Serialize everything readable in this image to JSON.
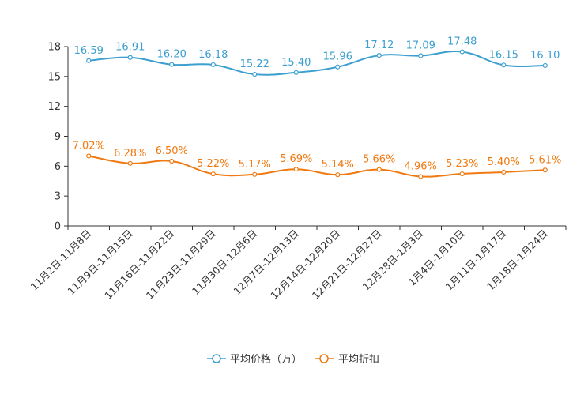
{
  "chart_data": {
    "type": "line",
    "title": "",
    "xlabel": "",
    "ylabel": "",
    "ylim": [
      0,
      18
    ],
    "yticks": [
      0,
      3,
      6,
      9,
      12,
      15,
      18
    ],
    "categories": [
      "11月2日-11月8日",
      "11月9日-11月15日",
      "11月16日-11月22日",
      "11月23日-11月29日",
      "11月30日-12月6日",
      "12月7日-12月13日",
      "12月14日-12月20日",
      "12月21日-12月27日",
      "12月28日-1月3日",
      "1月4日-1月10日",
      "1月11日-1月17日",
      "1月18日-1月24日"
    ],
    "series": [
      {
        "name": "平均价格（万）",
        "color": "#3c9fd0",
        "values": [
          16.59,
          16.91,
          16.2,
          16.18,
          15.22,
          15.4,
          15.96,
          17.12,
          17.09,
          17.48,
          16.15,
          16.1
        ],
        "labels": [
          "16.59",
          "16.91",
          "16.20",
          "16.18",
          "15.22",
          "15.40",
          "15.96",
          "17.12",
          "17.09",
          "17.48",
          "16.15",
          "16.10"
        ]
      },
      {
        "name": "平均折扣",
        "color": "#f07a12",
        "values": [
          7.02,
          6.28,
          6.5,
          5.22,
          5.17,
          5.69,
          5.14,
          5.66,
          4.96,
          5.23,
          5.4,
          5.61
        ],
        "labels": [
          "7.02%",
          "6.28%",
          "6.50%",
          "5.22%",
          "5.17%",
          "5.69%",
          "5.14%",
          "5.66%",
          "4.96%",
          "5.23%",
          "5.40%",
          "5.61%"
        ]
      }
    ],
    "legend_position": "bottom-center"
  }
}
